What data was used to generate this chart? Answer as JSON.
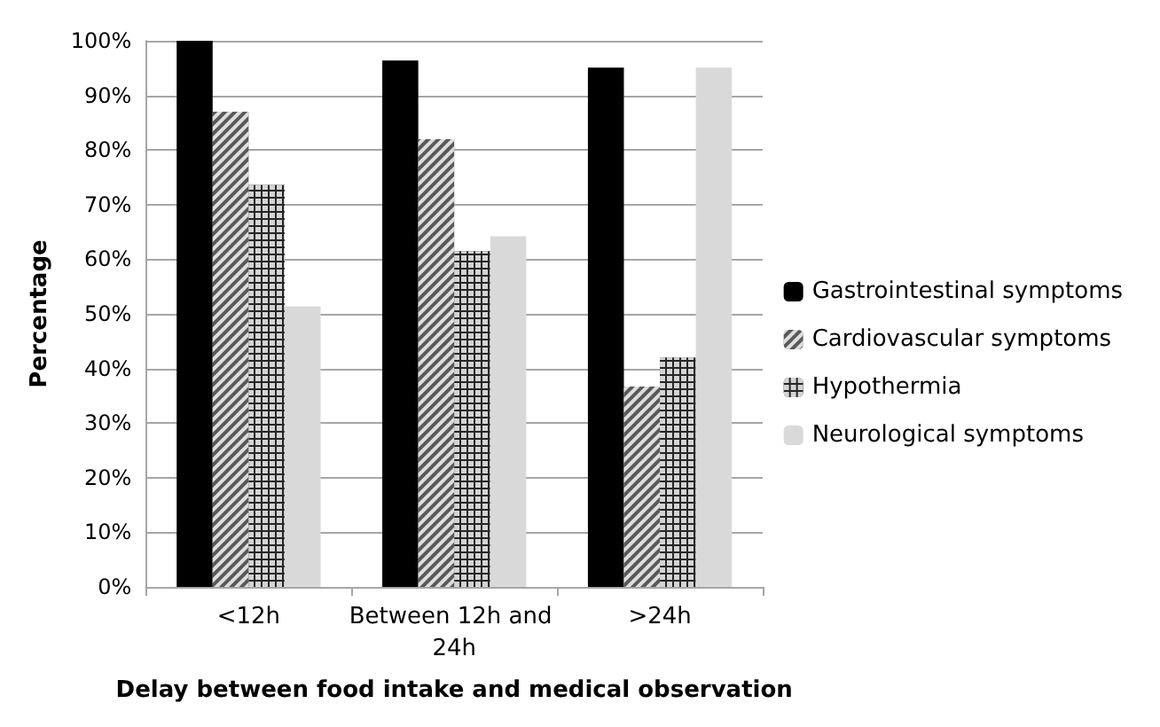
{
  "chart_data": {
    "type": "bar",
    "xlabel": "Delay between food intake and medical observation",
    "ylabel": "Percentage",
    "categories": [
      "<12h",
      "Between 12h and 24h",
      ">24h"
    ],
    "series": [
      {
        "name": "Gastrointestinal symptoms",
        "color": "#000000",
        "values": [
          100,
          96.4,
          95.1
        ]
      },
      {
        "name": "Cardiovascular symptoms",
        "color": "#595959",
        "values": [
          87,
          82,
          36.7
        ]
      },
      {
        "name": "Hypothermia",
        "color": "#262626",
        "values": [
          73.6,
          61.5,
          42
        ]
      },
      {
        "name": "Neurological symptoms",
        "color": "#d9d9d9",
        "values": [
          51.4,
          64.2,
          95.1
        ]
      }
    ],
    "ylim": [
      0,
      100
    ],
    "yticks": [
      {
        "value": 0,
        "label": "0%"
      },
      {
        "value": 10,
        "label": "10%"
      },
      {
        "value": 20,
        "label": "20%"
      },
      {
        "value": 30,
        "label": "30%"
      },
      {
        "value": 40,
        "label": "40%"
      },
      {
        "value": 50,
        "label": "50%"
      },
      {
        "value": 60,
        "label": "60%"
      },
      {
        "value": 70,
        "label": "70%"
      },
      {
        "value": 80,
        "label": "80%"
      },
      {
        "value": 90,
        "label": "90%"
      },
      {
        "value": 100,
        "label": "100%"
      }
    ],
    "grid": "y",
    "legend": "right"
  }
}
